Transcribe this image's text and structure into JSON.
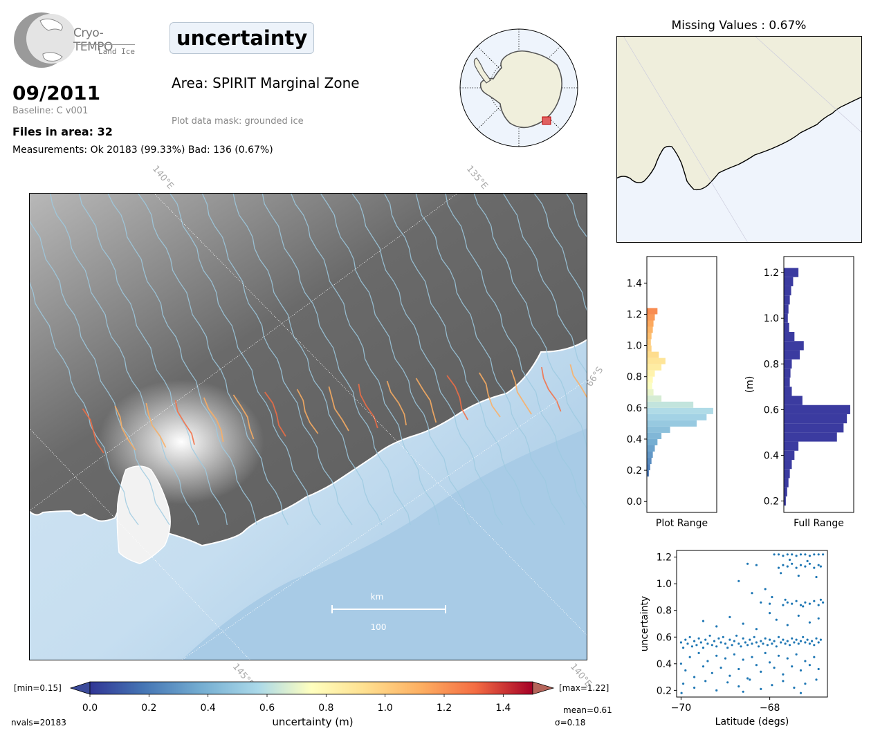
{
  "header": {
    "logo_name": "Cryo-TEMPO",
    "logo_sub": "Land Ice",
    "parameter_title": "uncertainty",
    "date": "09/2011",
    "baseline": "Baseline: C v001",
    "files_in_area": "Files in area: 32",
    "measurements": "Measurements: Ok 20183 (99.33%) Bad: 136 (0.67%)",
    "area": "Area: SPIRIT Marginal Zone",
    "plot_mask": "Plot data mask: grounded ice"
  },
  "main_map": {
    "lon_labels": [
      "140°E",
      "135°E",
      "145°E",
      "140°E"
    ],
    "lat_labels": [
      "66°S"
    ],
    "scalebar_unit": "km",
    "scalebar_value": "100"
  },
  "missing_values": {
    "title": "Missing Values : 0.67%"
  },
  "colorbar": {
    "label": "uncertainty (m)",
    "ticks": [
      "0.0",
      "0.2",
      "0.4",
      "0.6",
      "0.8",
      "1.0",
      "1.2",
      "1.4"
    ],
    "min_label": "[min=0.15]",
    "max_label": "[max=1.22]",
    "nvals": "nvals=20183",
    "mean": "mean=0.61",
    "sigma": "σ=0.18",
    "range": [
      0,
      1.5
    ]
  },
  "chart_data": [
    {
      "type": "bar",
      "orientation": "horizontal",
      "xlabel": "Plot Range",
      "ylabel": "",
      "ylim": [
        -0.07,
        1.57
      ],
      "yticks": [
        "0.0",
        "0.2",
        "0.4",
        "0.6",
        "0.8",
        "1.0",
        "1.2",
        "1.4"
      ],
      "bin_centers": [
        0.18,
        0.22,
        0.26,
        0.3,
        0.34,
        0.38,
        0.42,
        0.46,
        0.5,
        0.54,
        0.58,
        0.62,
        0.66,
        0.7,
        0.74,
        0.78,
        0.82,
        0.86,
        0.9,
        0.94,
        0.98,
        1.02,
        1.06,
        1.1,
        1.14,
        1.18,
        1.22
      ],
      "values": [
        0.03,
        0.05,
        0.07,
        0.09,
        0.12,
        0.16,
        0.22,
        0.35,
        0.75,
        0.9,
        1.0,
        0.7,
        0.22,
        0.1,
        0.08,
        0.09,
        0.12,
        0.22,
        0.28,
        0.18,
        0.07,
        0.06,
        0.07,
        0.09,
        0.1,
        0.12,
        0.16
      ]
    },
    {
      "type": "bar",
      "orientation": "horizontal",
      "xlabel": "Full Range",
      "ylabel": "(m)",
      "ylim": [
        0.15,
        1.27
      ],
      "yticks": [
        "0.2",
        "0.4",
        "0.6",
        "0.8",
        "1.0",
        "1.2"
      ],
      "bin_centers": [
        0.2,
        0.24,
        0.28,
        0.32,
        0.36,
        0.4,
        0.44,
        0.48,
        0.52,
        0.56,
        0.6,
        0.64,
        0.68,
        0.72,
        0.76,
        0.8,
        0.84,
        0.88,
        0.92,
        0.96,
        1.0,
        1.04,
        1.08,
        1.12,
        1.16,
        1.2
      ],
      "values": [
        0.03,
        0.05,
        0.07,
        0.09,
        0.12,
        0.16,
        0.22,
        0.8,
        0.9,
        0.95,
        1.0,
        0.28,
        0.12,
        0.09,
        0.1,
        0.12,
        0.24,
        0.3,
        0.16,
        0.08,
        0.06,
        0.07,
        0.09,
        0.11,
        0.14,
        0.22
      ]
    },
    {
      "type": "scatter",
      "title": "",
      "xlabel": "Latitude (degs)",
      "ylabel": "uncertainty",
      "xlim": [
        -70.1,
        -66.7
      ],
      "ylim": [
        0.15,
        1.25
      ],
      "xticks": [
        "−70",
        "−68"
      ],
      "yticks": [
        "0.2",
        "0.4",
        "0.6",
        "0.8",
        "1.0",
        "1.2"
      ],
      "points": [
        [
          -70.0,
          0.56
        ],
        [
          -69.95,
          0.52
        ],
        [
          -69.9,
          0.58
        ],
        [
          -69.85,
          0.55
        ],
        [
          -69.8,
          0.6
        ],
        [
          -69.75,
          0.53
        ],
        [
          -69.7,
          0.57
        ],
        [
          -69.65,
          0.54
        ],
        [
          -69.6,
          0.59
        ],
        [
          -69.55,
          0.56
        ],
        [
          -69.5,
          0.52
        ],
        [
          -69.45,
          0.58
        ],
        [
          -69.4,
          0.55
        ],
        [
          -69.35,
          0.61
        ],
        [
          -69.3,
          0.54
        ],
        [
          -69.25,
          0.57
        ],
        [
          -69.2,
          0.53
        ],
        [
          -69.15,
          0.59
        ],
        [
          -69.1,
          0.56
        ],
        [
          -69.05,
          0.6
        ],
        [
          -69.0,
          0.55
        ],
        [
          -68.95,
          0.52
        ],
        [
          -68.9,
          0.58
        ],
        [
          -68.85,
          0.54
        ],
        [
          -68.8,
          0.57
        ],
        [
          -68.75,
          0.61
        ],
        [
          -68.7,
          0.55
        ],
        [
          -68.65,
          0.53
        ],
        [
          -68.6,
          0.59
        ],
        [
          -68.55,
          0.56
        ],
        [
          -68.5,
          0.54
        ],
        [
          -68.45,
          0.58
        ],
        [
          -68.4,
          0.55
        ],
        [
          -68.35,
          0.6
        ],
        [
          -68.3,
          0.56
        ],
        [
          -68.25,
          0.53
        ],
        [
          -68.2,
          0.57
        ],
        [
          -68.15,
          0.55
        ],
        [
          -68.1,
          0.59
        ],
        [
          -68.05,
          0.54
        ],
        [
          -68.0,
          0.58
        ],
        [
          -67.95,
          0.55
        ],
        [
          -67.9,
          0.57
        ],
        [
          -67.85,
          0.53
        ],
        [
          -67.8,
          0.6
        ],
        [
          -67.75,
          0.56
        ],
        [
          -67.7,
          0.58
        ],
        [
          -67.65,
          0.55
        ],
        [
          -67.6,
          0.57
        ],
        [
          -67.55,
          0.54
        ],
        [
          -67.5,
          0.59
        ],
        [
          -67.45,
          0.56
        ],
        [
          -67.4,
          0.58
        ],
        [
          -67.35,
          0.55
        ],
        [
          -67.3,
          0.57
        ],
        [
          -67.25,
          0.6
        ],
        [
          -67.2,
          0.56
        ],
        [
          -67.15,
          0.58
        ],
        [
          -67.1,
          0.55
        ],
        [
          -67.05,
          0.57
        ],
        [
          -67.0,
          0.54
        ],
        [
          -66.95,
          0.59
        ],
        [
          -66.9,
          0.56
        ],
        [
          -66.85,
          0.58
        ],
        [
          -70.0,
          0.4
        ],
        [
          -69.9,
          0.35
        ],
        [
          -69.8,
          0.45
        ],
        [
          -69.7,
          0.3
        ],
        [
          -69.6,
          0.48
        ],
        [
          -69.5,
          0.38
        ],
        [
          -69.4,
          0.42
        ],
        [
          -69.3,
          0.33
        ],
        [
          -69.2,
          0.46
        ],
        [
          -69.1,
          0.37
        ],
        [
          -69.0,
          0.44
        ],
        [
          -68.9,
          0.31
        ],
        [
          -68.8,
          0.47
        ],
        [
          -68.7,
          0.36
        ],
        [
          -68.6,
          0.43
        ],
        [
          -68.5,
          0.29
        ],
        [
          -68.4,
          0.45
        ],
        [
          -68.3,
          0.39
        ],
        [
          -68.2,
          0.34
        ],
        [
          -68.1,
          0.48
        ],
        [
          -68.0,
          0.41
        ],
        [
          -67.9,
          0.37
        ],
        [
          -67.8,
          0.46
        ],
        [
          -67.7,
          0.32
        ],
        [
          -67.6,
          0.44
        ],
        [
          -67.5,
          0.38
        ],
        [
          -67.4,
          0.47
        ],
        [
          -67.3,
          0.35
        ],
        [
          -67.2,
          0.42
        ],
        [
          -67.1,
          0.39
        ],
        [
          -67.0,
          0.45
        ],
        [
          -66.9,
          0.36
        ],
        [
          -69.95,
          0.25
        ],
        [
          -69.7,
          0.22
        ],
        [
          -69.45,
          0.27
        ],
        [
          -69.2,
          0.2
        ],
        [
          -68.95,
          0.26
        ],
        [
          -68.7,
          0.23
        ],
        [
          -68.45,
          0.28
        ],
        [
          -68.2,
          0.21
        ],
        [
          -67.95,
          0.24
        ],
        [
          -67.7,
          0.27
        ],
        [
          -67.45,
          0.22
        ],
        [
          -67.2,
          0.25
        ],
        [
          -66.95,
          0.28
        ],
        [
          -69.99,
          0.18
        ],
        [
          -68.6,
          0.19
        ],
        [
          -67.3,
          0.18
        ],
        [
          -69.5,
          0.72
        ],
        [
          -69.2,
          0.68
        ],
        [
          -68.9,
          0.75
        ],
        [
          -68.6,
          0.7
        ],
        [
          -68.3,
          0.66
        ],
        [
          -68.0,
          0.78
        ],
        [
          -67.85,
          0.73
        ],
        [
          -67.6,
          0.69
        ],
        [
          -67.35,
          0.76
        ],
        [
          -67.1,
          0.71
        ],
        [
          -66.9,
          0.74
        ],
        [
          -67.95,
          0.9
        ],
        [
          -68.1,
          0.96
        ],
        [
          -68.4,
          0.93
        ],
        [
          -68.7,
          1.02
        ],
        [
          -67.7,
          0.84
        ],
        [
          -67.6,
          0.86
        ],
        [
          -67.5,
          0.85
        ],
        [
          -67.4,
          0.87
        ],
        [
          -67.3,
          0.84
        ],
        [
          -67.2,
          0.86
        ],
        [
          -67.1,
          0.85
        ],
        [
          -67.0,
          0.87
        ],
        [
          -66.9,
          0.84
        ],
        [
          -66.8,
          0.86
        ],
        [
          -67.65,
          0.88
        ],
        [
          -67.25,
          0.83
        ],
        [
          -66.85,
          0.88
        ],
        [
          -68.0,
          0.85
        ],
        [
          -68.2,
          0.86
        ],
        [
          -67.8,
          1.12
        ],
        [
          -67.7,
          1.14
        ],
        [
          -67.6,
          1.13
        ],
        [
          -67.5,
          1.15
        ],
        [
          -67.4,
          1.12
        ],
        [
          -67.3,
          1.14
        ],
        [
          -67.2,
          1.13
        ],
        [
          -67.1,
          1.15
        ],
        [
          -67.0,
          1.12
        ],
        [
          -66.9,
          1.14
        ],
        [
          -66.85,
          1.13
        ],
        [
          -67.75,
          1.08
        ],
        [
          -67.35,
          1.06
        ],
        [
          -66.95,
          1.05
        ],
        [
          -67.55,
          1.18
        ],
        [
          -67.15,
          1.17
        ],
        [
          -67.9,
          1.22
        ],
        [
          -67.8,
          1.22
        ],
        [
          -67.7,
          1.21
        ],
        [
          -67.6,
          1.22
        ],
        [
          -67.5,
          1.22
        ],
        [
          -67.4,
          1.21
        ],
        [
          -67.3,
          1.22
        ],
        [
          -67.2,
          1.22
        ],
        [
          -67.1,
          1.21
        ],
        [
          -67.0,
          1.22
        ],
        [
          -66.9,
          1.22
        ],
        [
          -66.8,
          1.22
        ],
        [
          -68.5,
          1.15
        ],
        [
          -68.3,
          1.14
        ]
      ]
    }
  ]
}
